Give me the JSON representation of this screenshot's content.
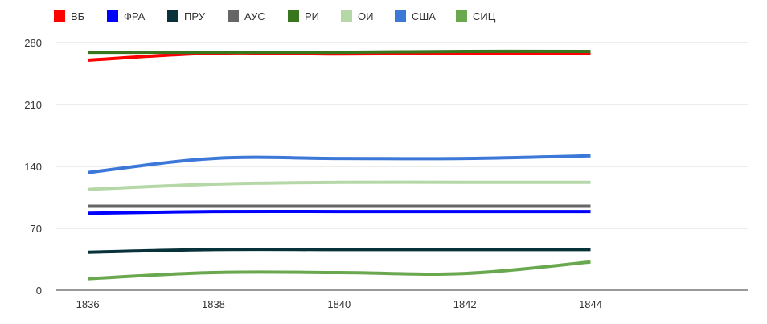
{
  "chart_data": {
    "type": "line",
    "x": [
      1836,
      1838,
      1840,
      1842,
      1844
    ],
    "x_ticks": [
      "1836",
      "1838",
      "1840",
      "1842",
      "1844"
    ],
    "xlim": [
      1835.5,
      1846.5
    ],
    "y_ticks": [
      "0",
      "70",
      "140",
      "210",
      "280"
    ],
    "ylim": [
      0,
      280
    ],
    "grid": true,
    "legend_position": "top-left",
    "series": [
      {
        "name": "ВБ",
        "color": "#ff0000",
        "values": [
          260,
          268,
          267,
          268,
          268
        ]
      },
      {
        "name": "ФРА",
        "color": "#0000ff",
        "values": [
          87,
          89,
          89,
          89,
          89
        ]
      },
      {
        "name": "ПРУ",
        "color": "#073239",
        "values": [
          43,
          46,
          46,
          46,
          46
        ]
      },
      {
        "name": "АУС",
        "color": "#666666",
        "values": [
          95,
          95,
          95,
          95,
          95
        ]
      },
      {
        "name": "РИ",
        "color": "#38761d",
        "values": [
          269,
          269,
          269,
          270,
          270
        ]
      },
      {
        "name": "ОИ",
        "color": "#b6d7a8",
        "values": [
          114,
          120,
          122,
          122,
          122
        ]
      },
      {
        "name": "США",
        "color": "#3c78d8",
        "values": [
          133,
          149,
          149,
          149,
          152
        ]
      },
      {
        "name": "СИЦ",
        "color": "#6aa84f",
        "values": [
          13,
          20,
          20,
          19,
          32
        ]
      }
    ]
  }
}
